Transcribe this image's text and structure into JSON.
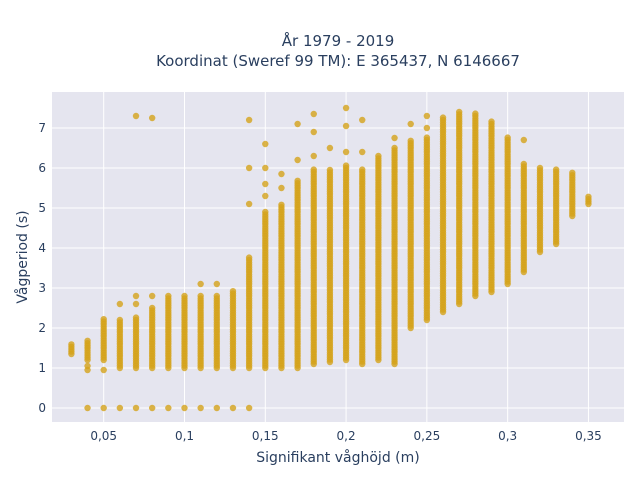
{
  "chart_data": {
    "type": "scatter",
    "title": "År 1979 - 2019",
    "subtitle": "Koordinat (Sweref 99 TM): E 365437, N 6146667",
    "xlabel": "Signifikant våghöjd (m)",
    "ylabel": "Vågperiod (s)",
    "xlim": [
      0.018,
      0.372
    ],
    "ylim": [
      -0.35,
      7.9
    ],
    "x_ticks": [
      0.05,
      0.1,
      0.15,
      0.2,
      0.25,
      0.3,
      0.35
    ],
    "x_tick_labels": [
      "0,05",
      "0,1",
      "0,15",
      "0,2",
      "0,25",
      "0,3",
      "0,35"
    ],
    "y_ticks": [
      0,
      1,
      2,
      3,
      4,
      5,
      6,
      7
    ],
    "y_tick_labels": [
      "0",
      "1",
      "2",
      "3",
      "4",
      "5",
      "6",
      "7"
    ],
    "grid": true,
    "colors": {
      "marker": "#d4a21a",
      "plot_bg": "#e5e5ef",
      "grid": "#ffffff"
    },
    "columns": [
      {
        "x": 0.03,
        "min": 1.35,
        "max": 1.6
      },
      {
        "x": 0.04,
        "min": 1.2,
        "max": 1.7,
        "extra": [
          0,
          0.95,
          1.05
        ]
      },
      {
        "x": 0.05,
        "min": 1.2,
        "max": 2.25,
        "extra": [
          0,
          0.95
        ]
      },
      {
        "x": 0.06,
        "min": 1.0,
        "max": 2.25,
        "extra": [
          0,
          2.6
        ]
      },
      {
        "x": 0.07,
        "min": 1.0,
        "max": 2.3,
        "extra": [
          0,
          2.6,
          2.8,
          7.3
        ]
      },
      {
        "x": 0.08,
        "min": 1.0,
        "max": 2.55,
        "extra": [
          0,
          2.8,
          7.25
        ]
      },
      {
        "x": 0.09,
        "min": 1.0,
        "max": 2.8,
        "extra": [
          0
        ]
      },
      {
        "x": 0.1,
        "min": 1.0,
        "max": 2.85,
        "extra": [
          0
        ]
      },
      {
        "x": 0.11,
        "min": 1.0,
        "max": 2.8,
        "extra": [
          0,
          3.1
        ]
      },
      {
        "x": 0.12,
        "min": 1.0,
        "max": 2.85,
        "extra": [
          0,
          3.1
        ]
      },
      {
        "x": 0.13,
        "min": 1.0,
        "max": 2.95,
        "extra": [
          0
        ]
      },
      {
        "x": 0.14,
        "min": 1.0,
        "max": 3.8,
        "extra": [
          0,
          5.1,
          6.0,
          7.2
        ]
      },
      {
        "x": 0.15,
        "min": 1.0,
        "max": 4.9,
        "extra": [
          5.3,
          5.6,
          6.0,
          6.6
        ]
      },
      {
        "x": 0.16,
        "min": 1.0,
        "max": 5.1,
        "extra": [
          5.5,
          5.85
        ]
      },
      {
        "x": 0.17,
        "min": 1.0,
        "max": 5.7,
        "extra": [
          6.2,
          7.1
        ]
      },
      {
        "x": 0.18,
        "min": 1.1,
        "max": 6.0,
        "extra": [
          6.3,
          6.9,
          7.35
        ]
      },
      {
        "x": 0.19,
        "min": 1.15,
        "max": 6.0,
        "extra": [
          6.5
        ]
      },
      {
        "x": 0.2,
        "min": 1.2,
        "max": 6.1,
        "extra": [
          6.4,
          7.05,
          7.5
        ]
      },
      {
        "x": 0.21,
        "min": 1.1,
        "max": 6.0,
        "extra": [
          6.4,
          7.2
        ]
      },
      {
        "x": 0.22,
        "min": 1.2,
        "max": 6.3
      },
      {
        "x": 0.23,
        "min": 1.1,
        "max": 6.5,
        "extra": [
          6.75
        ]
      },
      {
        "x": 0.24,
        "min": 2.0,
        "max": 6.7,
        "extra": [
          7.1
        ]
      },
      {
        "x": 0.25,
        "min": 2.2,
        "max": 6.8,
        "extra": [
          7.0,
          7.3
        ]
      },
      {
        "x": 0.26,
        "min": 2.4,
        "max": 7.3
      },
      {
        "x": 0.27,
        "min": 2.6,
        "max": 7.4
      },
      {
        "x": 0.28,
        "min": 2.8,
        "max": 7.4
      },
      {
        "x": 0.29,
        "min": 2.9,
        "max": 7.2
      },
      {
        "x": 0.3,
        "min": 3.1,
        "max": 6.8
      },
      {
        "x": 0.31,
        "min": 3.4,
        "max": 6.1,
        "extra": [
          6.7
        ]
      },
      {
        "x": 0.32,
        "min": 3.9,
        "max": 6.0
      },
      {
        "x": 0.33,
        "min": 4.1,
        "max": 6.0
      },
      {
        "x": 0.34,
        "min": 4.8,
        "max": 5.9
      },
      {
        "x": 0.35,
        "min": 5.1,
        "max": 5.3
      }
    ]
  }
}
